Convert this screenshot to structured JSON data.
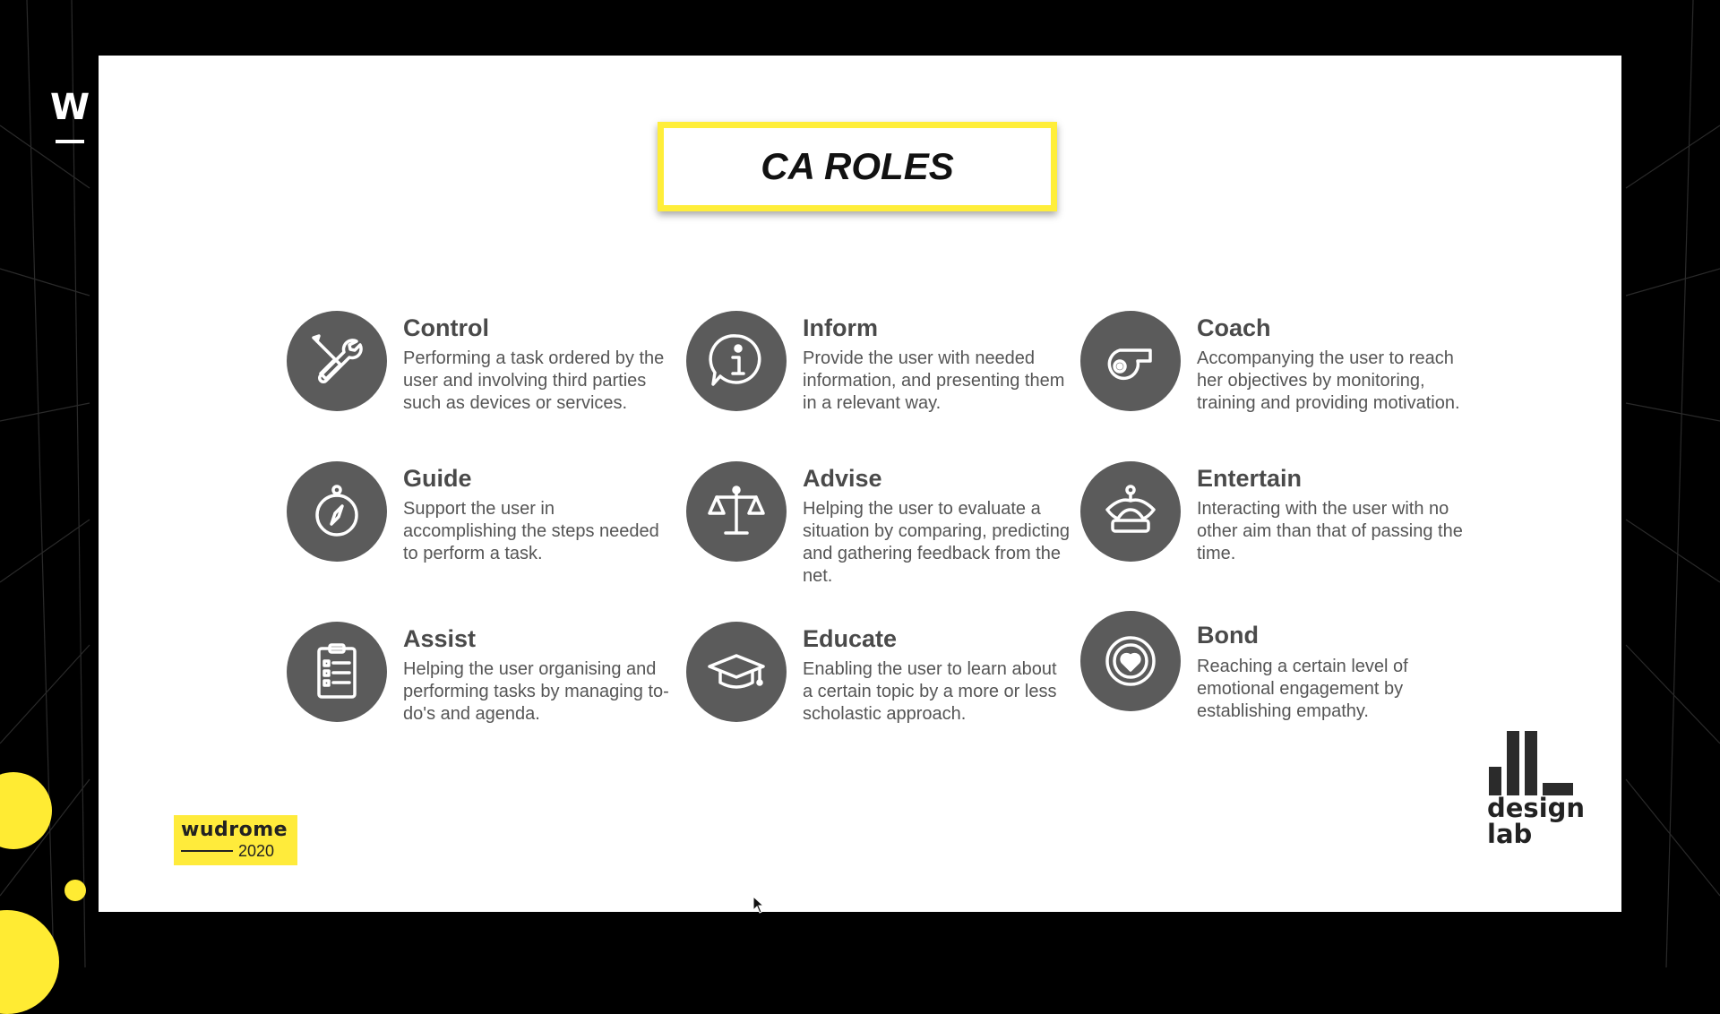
{
  "side_logo": "W",
  "slide": {
    "title": "CA ROLES",
    "roles": [
      {
        "title": "Control",
        "description": "Performing a task ordered by the user and involving third parties such as devices or services.",
        "icon": "wrench-screwdriver-icon"
      },
      {
        "title": "Inform",
        "description": "Provide the user with needed information, and presenting them in a relevant way.",
        "icon": "info-bubble-icon"
      },
      {
        "title": "Coach",
        "description": "Accompanying the user to reach her objectives by monitoring, training and providing motivation.",
        "icon": "whistle-icon"
      },
      {
        "title": "Guide",
        "description": "Support the user in accomplishing the steps needed to perform a task.",
        "icon": "compass-icon"
      },
      {
        "title": "Advise",
        "description": "Helping the user to evaluate a situation by comparing, predicting and gathering feedback from the net.",
        "icon": "scales-icon"
      },
      {
        "title": "Entertain",
        "description": "Interacting with the user with no other aim than that of passing the time.",
        "icon": "jester-hat-icon"
      },
      {
        "title": "Assist",
        "description": "Helping the user organising and performing tasks by managing to-do's and agenda.",
        "icon": "clipboard-checklist-icon"
      },
      {
        "title": "Educate",
        "description": "Enabling the user to learn about a certain topic by a more or less scholastic approach.",
        "icon": "graduation-cap-icon"
      },
      {
        "title": "Bond",
        "description": "Reaching a certain level of emotional engagement by establishing  empathy.",
        "icon": "heart-circle-icon"
      }
    ],
    "event_logo": {
      "name": "wudrome",
      "year": "2020"
    },
    "design_lab_logo": {
      "line1": "design",
      "line2": "lab"
    }
  },
  "colors": {
    "accent": "#ffeb33",
    "icon_bg": "#5b5b5b",
    "frame": "#000000"
  }
}
